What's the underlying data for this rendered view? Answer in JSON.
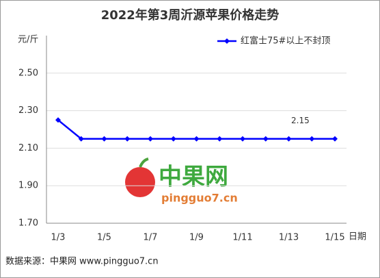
{
  "chart_data": {
    "type": "line",
    "title": "2022年第3周沂源苹果价格走势",
    "y_unit": "元/斤",
    "x_label": "日期",
    "categories": [
      "1/3",
      null,
      "1/5",
      null,
      "1/7",
      null,
      "1/9",
      null,
      "1/11",
      null,
      "1/13",
      null,
      "1/15"
    ],
    "series": [
      {
        "name": "红富士75#以上不封顶",
        "color": "#0000ff",
        "values": [
          2.25,
          2.15,
          2.15,
          2.15,
          2.15,
          2.15,
          2.15,
          2.15,
          2.15,
          2.15,
          2.15,
          2.15,
          2.15
        ]
      }
    ],
    "annotation": "2.15",
    "ylim": [
      1.7,
      2.7
    ],
    "yticks": [
      {
        "value": 1.7,
        "label": "1.70"
      },
      {
        "value": 1.9,
        "label": "1.90"
      },
      {
        "value": 2.1,
        "label": "2.10"
      },
      {
        "value": 2.3,
        "label": "2.30"
      },
      {
        "value": 2.5,
        "label": "2.50"
      }
    ],
    "grid": true,
    "watermark": {
      "name": "中果网",
      "url": "pingguo7.cn"
    },
    "source": "数据来源：中果网 www.pingguo7.cn"
  }
}
